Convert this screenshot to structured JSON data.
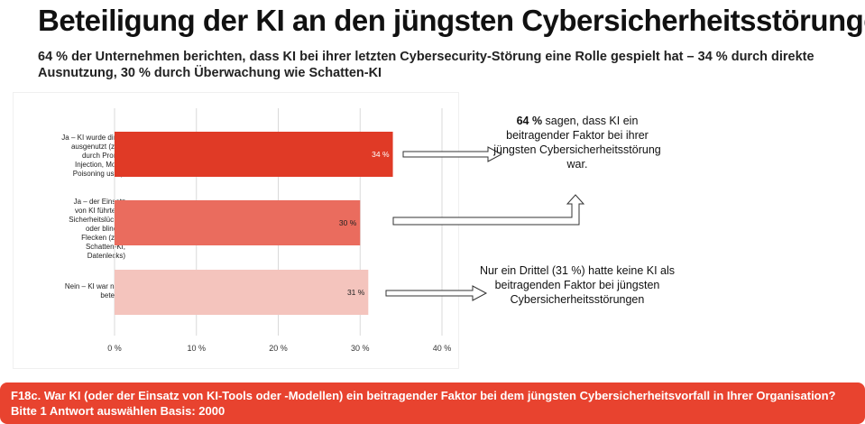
{
  "header": {
    "title": "Beteiligung der KI an den jüngsten Cybersicherheitsstörungen",
    "subtitle": "64 % der Unternehmen berichten, dass KI bei ihrer letzten Cybersecurity-Störung eine Rolle gespielt hat – 34 % durch direkte Ausnutzung, 30 % durch Überwachung wie Schatten-KI"
  },
  "chart_data": {
    "type": "bar",
    "orientation": "horizontal",
    "categories": [
      "Ja – KI wurde direkt ausgenutzt (z. B. durch Prompt Injection, Model Poisoning usw.).",
      "Ja – der Einsatz von KI führte zu Sicherheitslücken oder blinden Flecken (z. B. Schatten-KI, Datenlecks)",
      "Nein – KI war nicht beteiligt"
    ],
    "values": [
      34,
      30,
      31
    ],
    "value_labels": [
      "34 %",
      "30 %",
      "31 %"
    ],
    "bar_colors": [
      "#e03a26",
      "#ea6c5e",
      "#f4c4bd"
    ],
    "value_label_colors": [
      "#ffffff",
      "#222222",
      "#222222"
    ],
    "xlim": [
      0,
      40
    ],
    "ticks": [
      0,
      10,
      20,
      30,
      40
    ],
    "tick_labels": [
      "0 %",
      "10 %",
      "20 %",
      "30 %",
      "40 %"
    ],
    "grid": true
  },
  "annotations": {
    "top_bold": "64 %",
    "top_rest": " sagen, dass KI ein beitragender Faktor bei ihrer jüngsten Cybersicherheitsstörung war.",
    "bottom": "Nur ein Drittel (31 %) hatte keine KI als beitragenden Faktor bei jüngsten Cybersicherheitsstörungen"
  },
  "footer": {
    "text": "F18c. War KI (oder der Einsatz von KI-Tools oder -Modellen) ein beitragender Faktor bei dem jüngsten Cybersicherheitsvorfall in Ihrer Organisation? Bitte 1 Antwort auswählen Basis: 2000"
  },
  "colors": {
    "accent": "#e8432f",
    "grid": "#d9d9d9",
    "arrow_stroke": "#333333"
  }
}
